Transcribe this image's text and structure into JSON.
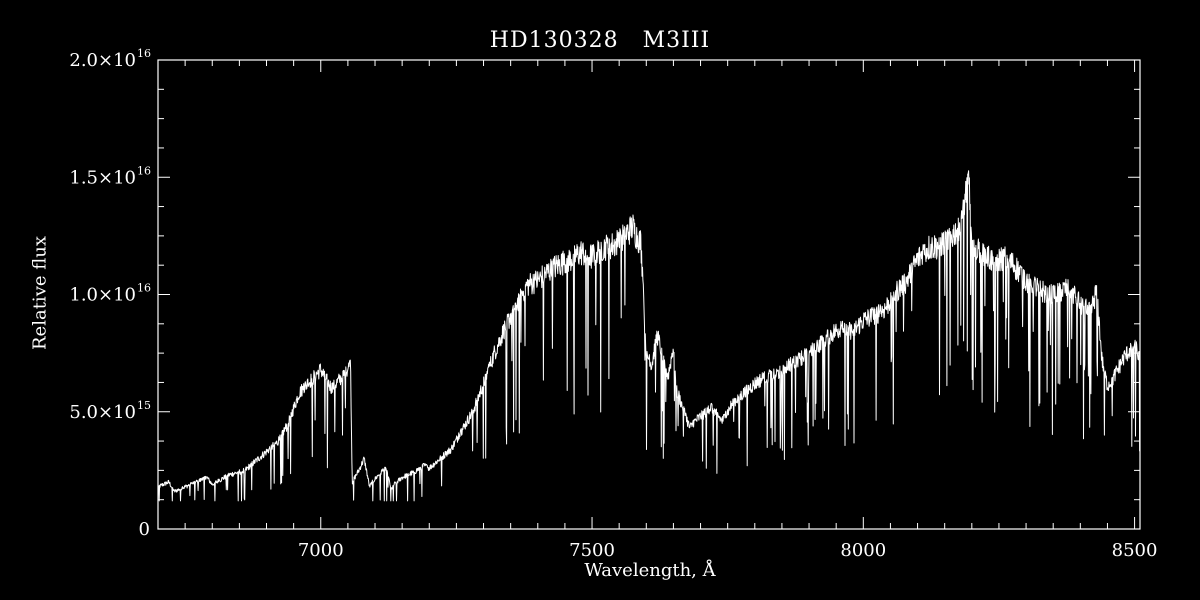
{
  "chart_data": {
    "type": "line",
    "title": "HD130328   M3III",
    "xlabel": "Wavelength, Å",
    "ylabel": "Relative flux",
    "xlim": [
      6700,
      8510
    ],
    "ylim": [
      0,
      2e+16
    ],
    "x_ticks": [
      {
        "value": 7000,
        "label": "7000"
      },
      {
        "value": 7500,
        "label": "7500"
      },
      {
        "value": 8000,
        "label": "8000"
      },
      {
        "value": 8500,
        "label": "8500"
      }
    ],
    "y_ticks": [
      {
        "value": 0,
        "label": "0"
      },
      {
        "value": 5000000000000000.0,
        "label": "5.0×10",
        "exp": "15"
      },
      {
        "value": 1e+16,
        "label": "1.0×10",
        "exp": "16"
      },
      {
        "value": 1.5e+16,
        "label": "1.5×10",
        "exp": "16"
      },
      {
        "value": 2e+16,
        "label": "2.0×10",
        "exp": "16"
      }
    ],
    "series": [
      {
        "color": "#ffffff",
        "x": [
          6700,
          6720,
          6730,
          6760,
          6790,
          6800,
          6830,
          6860,
          6880,
          6900,
          6920,
          6940,
          6960,
          6980,
          7000,
          7020,
          7040,
          7055,
          7058,
          7070,
          7080,
          7090,
          7095,
          7110,
          7120,
          7130,
          7135,
          7150,
          7170,
          7190,
          7200,
          7220,
          7240,
          7260,
          7280,
          7300,
          7320,
          7340,
          7360,
          7380,
          7400,
          7420,
          7440,
          7460,
          7480,
          7500,
          7520,
          7540,
          7560,
          7575,
          7580,
          7590,
          7600,
          7610,
          7620,
          7640,
          7650,
          7655,
          7670,
          7680,
          7690,
          7700,
          7720,
          7740,
          7760,
          7780,
          7800,
          7820,
          7840,
          7860,
          7880,
          7900,
          7920,
          7940,
          7960,
          7980,
          8000,
          8020,
          8040,
          8060,
          8080,
          8100,
          8120,
          8140,
          8160,
          8180,
          8190,
          8195,
          8200,
          8220,
          8240,
          8260,
          8280,
          8300,
          8320,
          8340,
          8360,
          8380,
          8400,
          8420,
          8430,
          8440,
          8450,
          8460,
          8480,
          8500,
          8510
        ],
        "y": [
          1800000000000000.0,
          2000000000000000.0,
          1600000000000000.0,
          1900000000000000.0,
          2200000000000000.0,
          1900000000000000.0,
          2300000000000000.0,
          2500000000000000.0,
          2900000000000000.0,
          3300000000000000.0,
          3700000000000000.0,
          4500000000000000.0,
          5800000000000000.0,
          6300000000000000.0,
          6800000000000000.0,
          6000000000000000.0,
          6500000000000000.0,
          7000000000000000.0,
          2000000000000000.0,
          2500000000000000.0,
          3000000000000000.0,
          1800000000000000.0,
          2000000000000000.0,
          2400000000000000.0,
          2600000000000000.0,
          1700000000000000.0,
          1900000000000000.0,
          2200000000000000.0,
          2400000000000000.0,
          2700000000000000.0,
          2600000000000000.0,
          3000000000000000.0,
          3400000000000000.0,
          4200000000000000.0,
          5000000000000000.0,
          6200000000000000.0,
          7500000000000000.0,
          8600000000000000.0,
          9600000000000000.0,
          1.04e+16,
          1.06e+16,
          1.1e+16,
          1.13e+16,
          1.15e+16,
          1.18e+16,
          1.16e+16,
          1.2e+16,
          1.21e+16,
          1.25e+16,
          1.29e+16,
          1.26e+16,
          1.22e+16,
          7500000000000000.0,
          7000000000000000.0,
          8300000000000000.0,
          6500000000000000.0,
          7800000000000000.0,
          6000000000000000.0,
          5000000000000000.0,
          4300000000000000.0,
          4600000000000000.0,
          4800000000000000.0,
          5200000000000000.0,
          4600000000000000.0,
          5400000000000000.0,
          5800000000000000.0,
          6200000000000000.0,
          6500000000000000.0,
          6600000000000000.0,
          7000000000000000.0,
          7200000000000000.0,
          7600000000000000.0,
          7900000000000000.0,
          8300000000000000.0,
          8600000000000000.0,
          8400000000000000.0,
          8900000000000000.0,
          9100000000000000.0,
          9400000000000000.0,
          1.01e+16,
          1.06e+16,
          1.15e+16,
          1.2e+16,
          1.21e+16,
          1.24e+16,
          1.3e+16,
          1.45e+16,
          1.5e+16,
          1.2e+16,
          1.18e+16,
          1.14e+16,
          1.16e+16,
          1.12e+16,
          1.06e+16,
          1.03e+16,
          1e+16,
          1.01e+16,
          1.03e+16,
          9600000000000000.0,
          9300000000000000.0,
          1.02e+16,
          7200000000000000.0,
          6100000000000000.0,
          6400000000000000.0,
          7300000000000000.0,
          7900000000000000.0,
          7200000000000000.0
        ]
      }
    ],
    "grid": false,
    "legend": "none",
    "background": "#000000",
    "foreground": "#ffffff"
  }
}
